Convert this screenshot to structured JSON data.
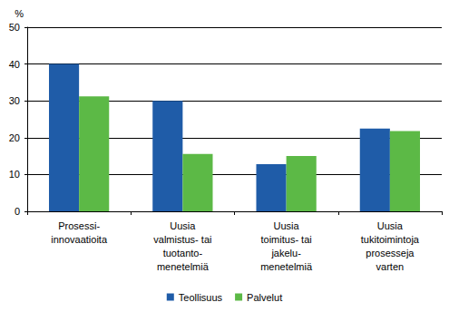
{
  "chart_data": {
    "type": "bar",
    "y_label": "%",
    "categories": [
      "Prosessi-\ninnovaatioita",
      "Uusia\nvalmistus- tai\ntuotanto-\nmenetelmiä",
      "Uusia\ntoimitus- tai\njakelu-\nmenetelmiä",
      "Uusia\ntukitoimintoja\nprosesseja\nvarten"
    ],
    "series": [
      {
        "name": "Teollisuus",
        "color": "#1f5ca8",
        "values": [
          40,
          30,
          12.8,
          22.5
        ]
      },
      {
        "name": "Palvelut",
        "color": "#5cb946",
        "values": [
          31.2,
          15.6,
          15,
          21.8
        ]
      }
    ],
    "ylim": [
      0,
      50
    ],
    "yticks": [
      0,
      10,
      20,
      30,
      40,
      50
    ],
    "grid": true,
    "legend": "bottom"
  }
}
